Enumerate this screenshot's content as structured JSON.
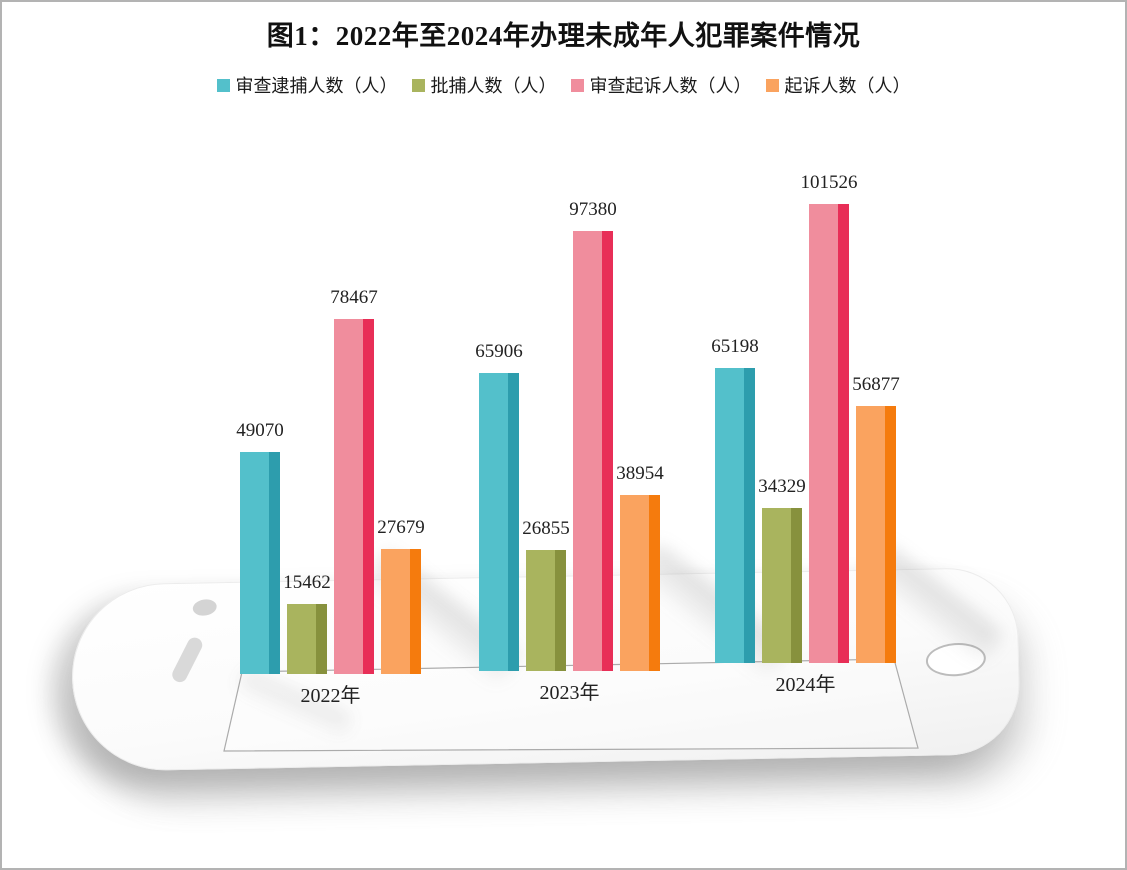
{
  "chart_data": {
    "type": "bar",
    "title": "图1：2022年至2024年办理未成年人犯罪案件情况",
    "categories": [
      "2022年",
      "2023年",
      "2024年"
    ],
    "series": [
      {
        "name": "审查逮捕人数（人）",
        "values": [
          49070,
          65906,
          65198
        ],
        "color": "#53c0cb",
        "edge_color": "#2d9dad"
      },
      {
        "name": "批捕人数（人）",
        "values": [
          15462,
          26855,
          34329
        ],
        "color": "#a9b45e",
        "edge_color": "#87913d"
      },
      {
        "name": "审查起诉人数（人）",
        "values": [
          78467,
          97380,
          101526
        ],
        "color": "#f08d9d",
        "edge_color": "#e82e57"
      },
      {
        "name": "起诉人数（人）",
        "values": [
          27679,
          38954,
          56877
        ],
        "color": "#faa35f",
        "edge_color": "#f57b0d"
      }
    ],
    "value_labels": true,
    "legend_position": "top",
    "grid": false,
    "xlabel": "",
    "ylabel": "",
    "ylim": [
      0,
      110000
    ]
  }
}
